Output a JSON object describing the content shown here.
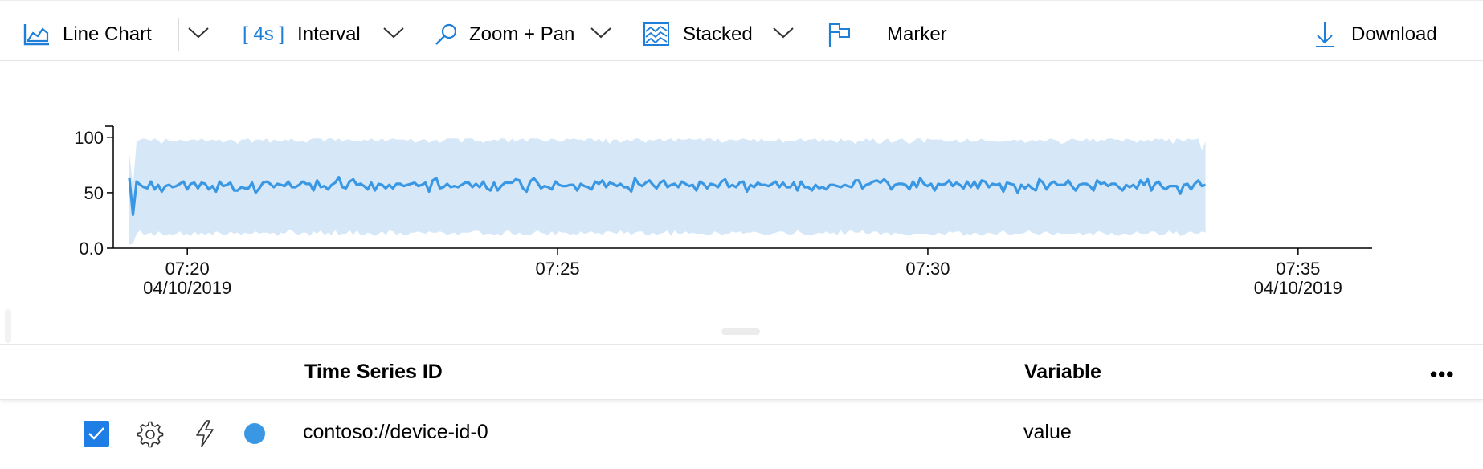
{
  "toolbar": {
    "chart_type_label": "Line Chart",
    "interval_value": "4s",
    "interval_label": "Interval",
    "zoom_label": "Zoom + Pan",
    "stack_label": "Stacked",
    "marker_label": "Marker",
    "download_label": "Download"
  },
  "colors": {
    "accent": "#1f7fd8",
    "series_line": "#3a97e3",
    "series_band": "#d6e8f8"
  },
  "chart_data": {
    "type": "line",
    "x_ticks": [
      {
        "time": "07:20",
        "date": "04/10/2019"
      },
      {
        "time": "07:25",
        "date": ""
      },
      {
        "time": "07:30",
        "date": ""
      },
      {
        "time": "07:35",
        "date": "04/10/2019"
      }
    ],
    "y_ticks": [
      "0.0",
      "50",
      "100"
    ],
    "ylim": [
      0,
      110
    ],
    "x_range_minutes": [
      "07:19:00",
      "07:36:00"
    ],
    "series": [
      {
        "start": "07:19:13",
        "end": "07:33:45",
        "avg": [
          63,
          30,
          60,
          57,
          55,
          54,
          60,
          53,
          57,
          51,
          56,
          57,
          55,
          56,
          58,
          60,
          53,
          58,
          59,
          54,
          59,
          58,
          53,
          56,
          51,
          60,
          56,
          57,
          59,
          52,
          52,
          55,
          54,
          54,
          59,
          50,
          54,
          59,
          60,
          58,
          55,
          58,
          57,
          56,
          60,
          55,
          55,
          57,
          60,
          58,
          58,
          52,
          61,
          55,
          56,
          53,
          57,
          59,
          64,
          55,
          54,
          60,
          62,
          57,
          58,
          56,
          53,
          59,
          52,
          58,
          57,
          54,
          57,
          54,
          58,
          58,
          56,
          57,
          58,
          59,
          56,
          57,
          59,
          51,
          61,
          63,
          54,
          55,
          58,
          55,
          56,
          55,
          57,
          59,
          59,
          55,
          58,
          55,
          60,
          54,
          52,
          59,
          52,
          56,
          59,
          59,
          59,
          62,
          61,
          54,
          51,
          60,
          63,
          59,
          54,
          56,
          55,
          53,
          60,
          57,
          56,
          56,
          57,
          57,
          52,
          58,
          56,
          55,
          53,
          60,
          58,
          61,
          55,
          59,
          58,
          56,
          58,
          55,
          55,
          51,
          63,
          58,
          56,
          59,
          61,
          57,
          54,
          59,
          61,
          55,
          57,
          58,
          55,
          60,
          58,
          56,
          57,
          52,
          60,
          58,
          54,
          58,
          57,
          55,
          60,
          62,
          55,
          57,
          55,
          59,
          60,
          51,
          57,
          55,
          59,
          57,
          57,
          56,
          58,
          60,
          55,
          59,
          55,
          55,
          59,
          52,
          60,
          55,
          55,
          52,
          57,
          54,
          55,
          53,
          57,
          57,
          56,
          55,
          57,
          56,
          55,
          61,
          61,
          54,
          57,
          58,
          60,
          61,
          59,
          62,
          59,
          53,
          57,
          58,
          58,
          57,
          53,
          60,
          55,
          63,
          58,
          56,
          58,
          52,
          58,
          57,
          58,
          61,
          56,
          59,
          57,
          54,
          60,
          55,
          60,
          54,
          61,
          60,
          55,
          58,
          57,
          58,
          51,
          59,
          58,
          57,
          50,
          57,
          54,
          57,
          54,
          52,
          62,
          59,
          53,
          58,
          60,
          57,
          57,
          57,
          61,
          56,
          52,
          57,
          58,
          58,
          56,
          52,
          61,
          58,
          59,
          56,
          58,
          58,
          55,
          52,
          57,
          55,
          57,
          54,
          61,
          57,
          62,
          52,
          58,
          60,
          55,
          53,
          56,
          56,
          56,
          49,
          57,
          58,
          53,
          58,
          61,
          56,
          57
        ],
        "max": [
          85,
          56,
          96,
          98,
          99,
          98,
          97,
          99,
          97,
          94,
          99,
          97,
          97,
          96,
          98,
          97,
          96,
          98,
          98,
          97,
          99,
          97,
          97,
          98,
          97,
          98,
          95,
          97,
          98,
          97,
          94,
          98,
          98,
          99,
          95,
          98,
          98,
          97,
          99,
          95,
          98,
          97,
          96,
          98,
          97,
          99,
          96,
          96,
          97,
          95,
          98,
          99,
          99,
          99,
          96,
          99,
          99,
          97,
          99,
          96,
          98,
          98,
          97,
          97,
          96,
          98,
          97,
          99,
          97,
          97,
          99,
          96,
          98,
          99,
          98,
          98,
          98,
          97,
          99,
          95,
          96,
          98,
          98,
          95,
          97,
          98,
          95,
          97,
          99,
          99,
          99,
          99,
          95,
          99,
          99,
          99,
          96,
          97,
          95,
          97,
          97,
          98,
          97,
          99,
          99,
          95,
          99,
          96,
          98,
          99,
          96,
          99,
          99,
          99,
          98,
          96,
          97,
          99,
          98,
          96,
          96,
          99,
          98,
          99,
          98,
          98,
          97,
          99,
          99,
          96,
          99,
          95,
          99,
          94,
          98,
          98,
          95,
          97,
          98,
          96,
          99,
          99,
          97,
          95,
          98,
          97,
          98,
          99,
          96,
          98,
          99,
          96,
          99,
          98,
          98,
          99,
          98,
          98,
          99,
          97,
          99,
          99,
          96,
          99,
          95,
          96,
          98,
          98,
          97,
          98,
          99,
          98,
          97,
          99,
          95,
          99,
          96,
          97,
          97,
          97,
          99,
          95,
          97,
          97,
          96,
          98,
          99,
          96,
          98,
          98,
          99,
          95,
          99,
          96,
          98,
          97,
          95,
          99,
          96,
          98,
          97,
          94,
          97,
          96,
          99,
          97,
          99,
          95,
          94,
          97,
          99,
          95,
          96,
          98,
          99,
          96,
          94,
          96,
          99,
          99,
          95,
          99,
          98,
          98,
          98,
          98,
          96,
          96,
          97,
          98,
          95,
          96,
          99,
          96,
          96,
          97,
          99,
          97,
          97,
          97,
          96,
          96,
          96,
          97,
          97,
          98,
          97,
          98,
          95,
          96,
          98,
          96,
          98,
          97,
          97,
          99,
          98,
          97,
          94,
          95,
          97,
          99,
          98,
          97,
          97,
          99,
          97,
          99,
          95,
          98,
          97,
          99,
          99,
          98,
          98,
          96,
          99,
          98,
          97,
          95,
          98,
          96,
          98,
          96,
          99,
          98,
          99,
          96,
          99,
          94,
          99,
          98,
          96,
          99,
          98,
          98,
          99,
          88,
          96,
          98
        ],
        "min": [
          3,
          4,
          13,
          16,
          12,
          13,
          14,
          11,
          15,
          13,
          11,
          13,
          12,
          13,
          15,
          12,
          13,
          11,
          15,
          12,
          14,
          12,
          14,
          12,
          15,
          14,
          12,
          12,
          15,
          13,
          14,
          12,
          14,
          13,
          13,
          15,
          13,
          14,
          14,
          13,
          14,
          11,
          14,
          13,
          16,
          16,
          13,
          12,
          14,
          14,
          11,
          15,
          13,
          16,
          12,
          14,
          12,
          16,
          12,
          13,
          13,
          16,
          12,
          16,
          12,
          12,
          14,
          13,
          11,
          13,
          15,
          12,
          16,
          15,
          12,
          14,
          12,
          12,
          14,
          14,
          15,
          14,
          13,
          15,
          14,
          14,
          15,
          14,
          12,
          13,
          14,
          12,
          14,
          14,
          14,
          15,
          16,
          15,
          12,
          13,
          13,
          12,
          13,
          11,
          15,
          16,
          13,
          12,
          14,
          12,
          12,
          12,
          14,
          16,
          14,
          13,
          12,
          15,
          12,
          15,
          14,
          14,
          12,
          13,
          12,
          15,
          13,
          14,
          15,
          13,
          14,
          12,
          15,
          15,
          14,
          13,
          16,
          13,
          15,
          12,
          14,
          15,
          15,
          12,
          12,
          14,
          12,
          13,
          14,
          16,
          11,
          16,
          13,
          13,
          15,
          13,
          14,
          13,
          13,
          13,
          12,
          12,
          15,
          14,
          12,
          13,
          13,
          15,
          14,
          15,
          13,
          14,
          14,
          15,
          14,
          13,
          12,
          12,
          13,
          14,
          15,
          15,
          13,
          12,
          13,
          16,
          14,
          12,
          12,
          12,
          13,
          14,
          13,
          15,
          13,
          14,
          12,
          16,
          12,
          15,
          16,
          14,
          14,
          16,
          13,
          13,
          15,
          15,
          12,
          14,
          14,
          12,
          14,
          13,
          13,
          12,
          11,
          13,
          13,
          13,
          13,
          13,
          12,
          12,
          14,
          13,
          12,
          15,
          14,
          15,
          15,
          11,
          13,
          12,
          14,
          13,
          11,
          13,
          14,
          13,
          12,
          14,
          16,
          13,
          12,
          13,
          13,
          13,
          14,
          16,
          14,
          13,
          12,
          14,
          15,
          13,
          12,
          14,
          13,
          13,
          13,
          13,
          13,
          14,
          12,
          13,
          14,
          12,
          15,
          15,
          13,
          12,
          14,
          12,
          11,
          13,
          13,
          12,
          13,
          15,
          13,
          13,
          13,
          15,
          15,
          12,
          12,
          13,
          16,
          13,
          15,
          11,
          12,
          14,
          15,
          13,
          13,
          15,
          14,
          13
        ]
      }
    ]
  },
  "legend": {
    "col_id_header": "Time Series ID",
    "col_variable_header": "Variable",
    "more_label": "•••",
    "rows": [
      {
        "id": "contoso://device-id-0",
        "variable": "value",
        "checked": true
      }
    ]
  }
}
